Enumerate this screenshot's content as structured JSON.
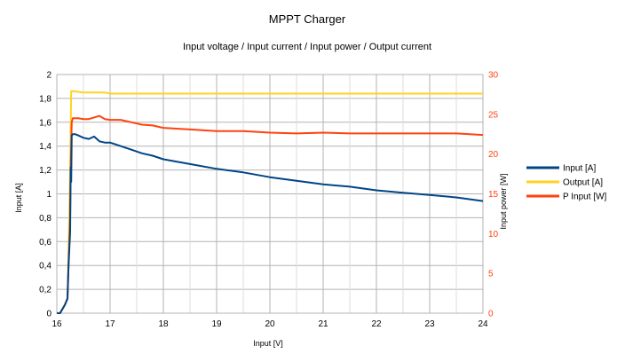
{
  "chart_data": {
    "type": "line",
    "title": "MPPT Charger",
    "subtitle": "Input voltage / Input current / Input power / Output current",
    "xlabel": "Input [V]",
    "ylabel_left": "Input [A]",
    "ylabel_right": "Input power [W]",
    "xlim": [
      16,
      24
    ],
    "ylim_left": [
      0,
      2
    ],
    "ylim_right": [
      0,
      30
    ],
    "x_ticks": [
      "16",
      "17",
      "18",
      "19",
      "20",
      "21",
      "22",
      "23",
      "24"
    ],
    "y_left_ticks": [
      "0",
      "0,2",
      "0,4",
      "0,6",
      "0,8",
      "1",
      "1,2",
      "1,4",
      "1,6",
      "1,8",
      "2"
    ],
    "y_right_ticks": [
      "0",
      "5",
      "10",
      "15",
      "20",
      "25",
      "30"
    ],
    "grid": true,
    "legend": "right",
    "series": [
      {
        "name": "Input [A]",
        "axis": "left",
        "color": "#004586",
        "x": [
          16.0,
          16.06,
          16.1,
          16.15,
          16.2,
          16.22,
          16.25,
          16.26,
          16.27,
          16.28,
          16.3,
          16.35,
          16.4,
          16.5,
          16.6,
          16.7,
          16.8,
          16.9,
          17.0,
          17.2,
          17.4,
          17.6,
          17.8,
          18.0,
          18.5,
          19.0,
          19.5,
          20.0,
          20.5,
          21.0,
          21.5,
          22.0,
          22.5,
          23.0,
          23.5,
          24.0
        ],
        "y": [
          0.0,
          0.0,
          0.03,
          0.07,
          0.12,
          0.4,
          0.68,
          1.22,
          1.1,
          1.49,
          1.5,
          1.5,
          1.49,
          1.47,
          1.46,
          1.48,
          1.44,
          1.43,
          1.43,
          1.4,
          1.37,
          1.34,
          1.32,
          1.29,
          1.25,
          1.21,
          1.18,
          1.14,
          1.11,
          1.08,
          1.06,
          1.03,
          1.01,
          0.99,
          0.97,
          0.94
        ]
      },
      {
        "name": "Output [A]",
        "axis": "left",
        "color": "#ffd320",
        "x": [
          16.0,
          16.06,
          16.1,
          16.15,
          16.2,
          16.22,
          16.25,
          16.27,
          16.3,
          16.5,
          16.9,
          17.0,
          17.2,
          18.0,
          20.0,
          22.0,
          24.0
        ],
        "y": [
          0.0,
          0.0,
          0.03,
          0.07,
          0.12,
          0.5,
          1.2,
          1.86,
          1.86,
          1.85,
          1.85,
          1.84,
          1.84,
          1.84,
          1.84,
          1.84,
          1.84
        ]
      },
      {
        "name": "P Input [W]",
        "axis": "right",
        "color": "#ff420e",
        "x": [
          16.0,
          16.06,
          16.1,
          16.15,
          16.2,
          16.22,
          16.25,
          16.26,
          16.28,
          16.3,
          16.4,
          16.5,
          16.6,
          16.7,
          16.8,
          16.9,
          17.0,
          17.2,
          17.4,
          17.6,
          17.8,
          18.0,
          18.5,
          19.0,
          19.5,
          20.0,
          20.5,
          21.0,
          21.5,
          22.0,
          22.5,
          23.0,
          23.5,
          24.0
        ],
        "y": [
          0.0,
          0.0,
          0.5,
          1.0,
          1.9,
          6.0,
          12.0,
          18.0,
          24.0,
          24.5,
          24.5,
          24.4,
          24.4,
          24.6,
          24.8,
          24.4,
          24.3,
          24.3,
          24.0,
          23.7,
          23.6,
          23.3,
          23.1,
          22.9,
          22.9,
          22.7,
          22.6,
          22.7,
          22.6,
          22.6,
          22.6,
          22.6,
          22.6,
          22.4
        ]
      }
    ]
  }
}
